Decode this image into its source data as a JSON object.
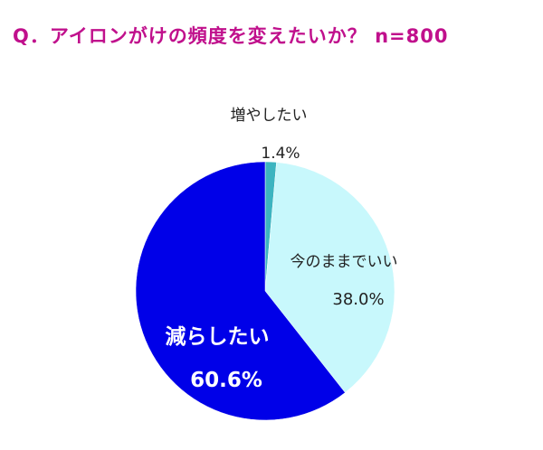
{
  "chart_data": {
    "type": "pie",
    "title": "Q．アイロンがけの頻度を変えたいか？ n=800",
    "slices": [
      {
        "label": "増やしたい",
        "value": 1.4,
        "value_label": "1.4%",
        "color": "#3cb4c0"
      },
      {
        "label": "今のままでいい",
        "value": 38.0,
        "value_label": "38.0%",
        "color": "#c8f8fc"
      },
      {
        "label": "減らしたい",
        "value": 60.6,
        "value_label": "60.6%",
        "color": "#0000e8"
      }
    ],
    "start_angle": "top",
    "direction": "clockwise",
    "legend": "none"
  }
}
